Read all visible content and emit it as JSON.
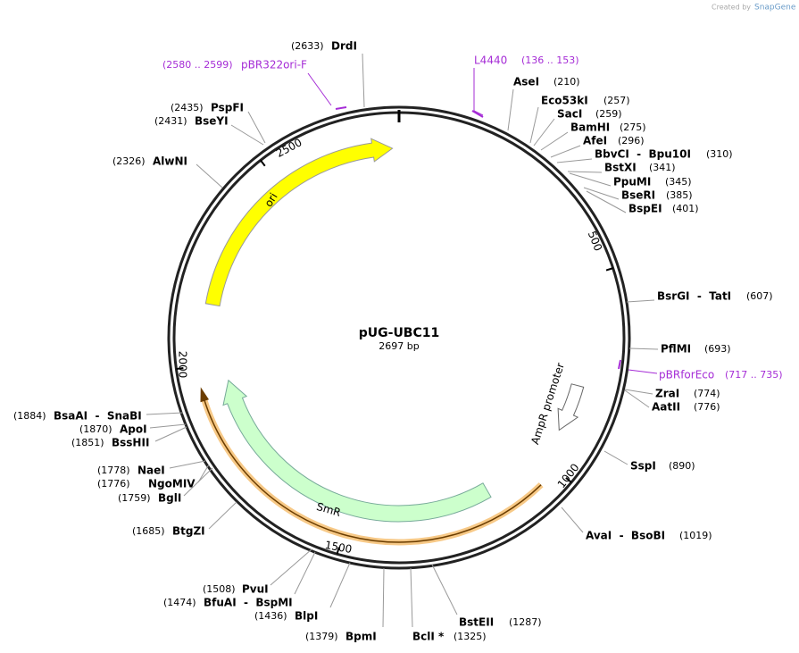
{
  "watermark": {
    "prefix": "Created by",
    "brand": "SnapGene"
  },
  "map": {
    "title": "pUG-UBC11",
    "length": "2697 bp",
    "ruler": [
      "500",
      "1000",
      "1500",
      "2000",
      "2500"
    ]
  },
  "features": [
    {
      "label": "ori"
    },
    {
      "label": "SmR"
    },
    {
      "label": "AmpR promoter"
    }
  ],
  "primers": [
    {
      "name": "pBR322ori-F",
      "range": "(2580 .. 2599)"
    },
    {
      "name": "L4440",
      "range": "(136 .. 153)"
    },
    {
      "name": "pBRforEco",
      "range": "(717 .. 735)"
    }
  ],
  "enzymes": [
    {
      "name": "DrdI",
      "position": "(2633)"
    },
    {
      "name": "AseI",
      "position": "(210)"
    },
    {
      "name": "Eco53kI",
      "position": "(257)"
    },
    {
      "name": "SacI",
      "position": "(259)"
    },
    {
      "name": "BamHI",
      "position": "(275)"
    },
    {
      "name": "AfeI",
      "position": "(296)"
    },
    {
      "name": "BbvCI  -  Bpu10I",
      "position": "(310)"
    },
    {
      "name": "BstXI",
      "position": "(341)"
    },
    {
      "name": "PpuMI",
      "position": "(345)"
    },
    {
      "name": "BseRI",
      "position": "(385)"
    },
    {
      "name": "BspEI",
      "position": "(401)"
    },
    {
      "name": "BsrGI  -  TatI",
      "position": "(607)"
    },
    {
      "name": "PflMI",
      "position": "(693)"
    },
    {
      "name": "ZraI",
      "position": "(774)"
    },
    {
      "name": "AatII",
      "position": "(776)"
    },
    {
      "name": "SspI",
      "position": "(890)"
    },
    {
      "name": "AvaI  -  BsoBI",
      "position": "(1019)"
    },
    {
      "name": "BstEII",
      "position": "(1287)"
    },
    {
      "name": "BclI *",
      "position": "(1325)"
    },
    {
      "name": "BpmI",
      "position": "(1379)"
    },
    {
      "name": "BlpI",
      "position": "(1436)"
    },
    {
      "name": "BfuAI  -  BspMI",
      "position": "(1474)"
    },
    {
      "name": "PvuI",
      "position": "(1508)"
    },
    {
      "name": "BtgZI",
      "position": "(1685)"
    },
    {
      "name": "BglI",
      "position": "(1759)"
    },
    {
      "name": "NgoMIV",
      "position": "(1776)"
    },
    {
      "name": "NaeI",
      "position": "(1778)"
    },
    {
      "name": "BssHII",
      "position": "(1851)"
    },
    {
      "name": "ApoI",
      "position": "(1870)"
    },
    {
      "name": "BsaAI  -  SnaBI",
      "position": "(1884)"
    },
    {
      "name": "AlwNI",
      "position": "(2326)"
    },
    {
      "name": "BseYI",
      "position": "(2431)"
    },
    {
      "name": "PspFI",
      "position": "(2435)"
    }
  ]
}
